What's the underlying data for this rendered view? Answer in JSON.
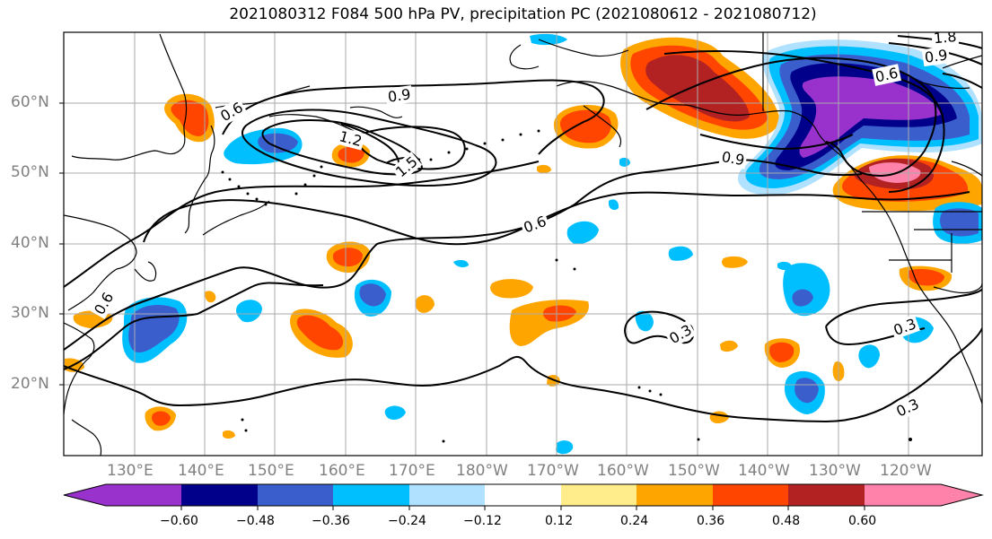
{
  "title": "2021080312 F084 500 hPa PV, precipitation PC (2021080612 - 2021080712)",
  "lat_labels": [
    "60°N",
    "50°N",
    "40°N",
    "30°N",
    "20°N"
  ],
  "lon_labels": [
    "130°E",
    "140°E",
    "150°E",
    "160°E",
    "170°E",
    "180°W",
    "170°W",
    "160°W",
    "150°W",
    "140°W",
    "130°W",
    "120°W"
  ],
  "contour_labels": [
    "0.6",
    "0.9",
    "1.2",
    "1.5",
    "0.6",
    "0.9",
    "0.6",
    "0.9",
    "1.8",
    "0.3",
    "0.3",
    "0.3",
    "0.6"
  ],
  "colorbar": {
    "colors": [
      "#9932cc",
      "#00008b",
      "#3a5fcd",
      "#00bfff",
      "#b0e2ff",
      "#ffffff",
      "#ffec8b",
      "#ffa500",
      "#ff4500",
      "#b22222",
      "#ff82ab"
    ],
    "tick_labels": [
      "−0.60",
      "−0.48",
      "−0.36",
      "−0.24",
      "−0.12",
      "0.12",
      "0.24",
      "0.36",
      "0.48",
      "0.60"
    ]
  }
}
